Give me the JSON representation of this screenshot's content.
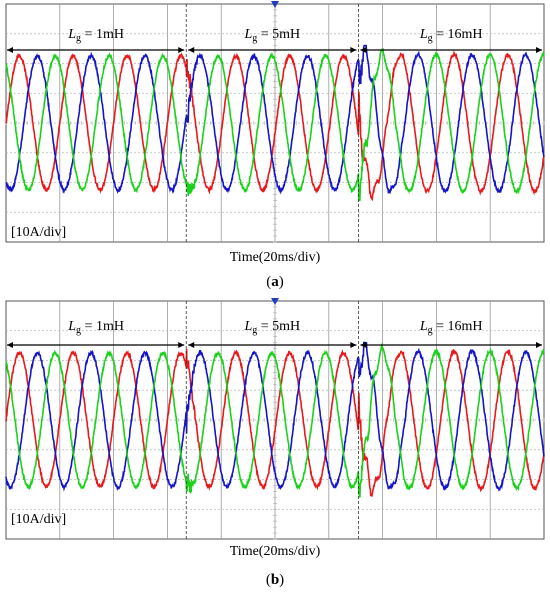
{
  "chart_data": [
    {
      "type": "line",
      "panel_label": "a",
      "scale_label": "[10A/div]",
      "time_label": "Time(20ms/div)",
      "x_divisions": 10,
      "y_divisions": 8,
      "ylim": [
        -40,
        40
      ],
      "xlim": [
        0,
        200
      ],
      "segments": [
        {
          "label_main": "L",
          "label_sub": "g",
          "label_value": " = 1mH",
          "x_start": 0,
          "x_end": 67
        },
        {
          "label_main": "L",
          "label_sub": "g",
          "label_value": " = 5mH",
          "x_start": 67,
          "x_end": 131
        },
        {
          "label_main": "L",
          "label_sub": "g",
          "label_value": " = 16mH",
          "x_start": 131,
          "x_end": 200
        }
      ],
      "series": [
        {
          "color": "#e8191b",
          "amplitude": 22.5,
          "phase_deg": 0
        },
        {
          "color": "#1414c8",
          "amplitude": 22.5,
          "phase_deg": -120
        },
        {
          "color": "#19d219",
          "amplitude": 22.5,
          "phase_deg": 120
        }
      ],
      "frequency_hz": 50,
      "disturbance_at_ms": [
        67,
        131
      ]
    },
    {
      "type": "line",
      "panel_label": "b",
      "scale_label": "[10A/div]",
      "time_label": "Time(20ms/div)",
      "x_divisions": 10,
      "y_divisions": 8,
      "ylim": [
        -40,
        40
      ],
      "xlim": [
        0,
        200
      ],
      "segments": [
        {
          "label_main": "L",
          "label_sub": "g",
          "label_value": " = 1mH",
          "x_start": 0,
          "x_end": 67
        },
        {
          "label_main": "L",
          "label_sub": "g",
          "label_value": " = 5mH",
          "x_start": 67,
          "x_end": 131
        },
        {
          "label_main": "L",
          "label_sub": "g",
          "label_value": " = 16mH",
          "x_start": 131,
          "x_end": 200
        }
      ],
      "series": [
        {
          "color": "#e8191b",
          "amplitude": 22.5,
          "phase_deg": 0
        },
        {
          "color": "#1414c8",
          "amplitude": 22.5,
          "phase_deg": -120
        },
        {
          "color": "#19d219",
          "amplitude": 22.5,
          "phase_deg": 120
        }
      ],
      "frequency_hz": 50,
      "disturbance_at_ms": [
        67,
        131
      ]
    }
  ]
}
